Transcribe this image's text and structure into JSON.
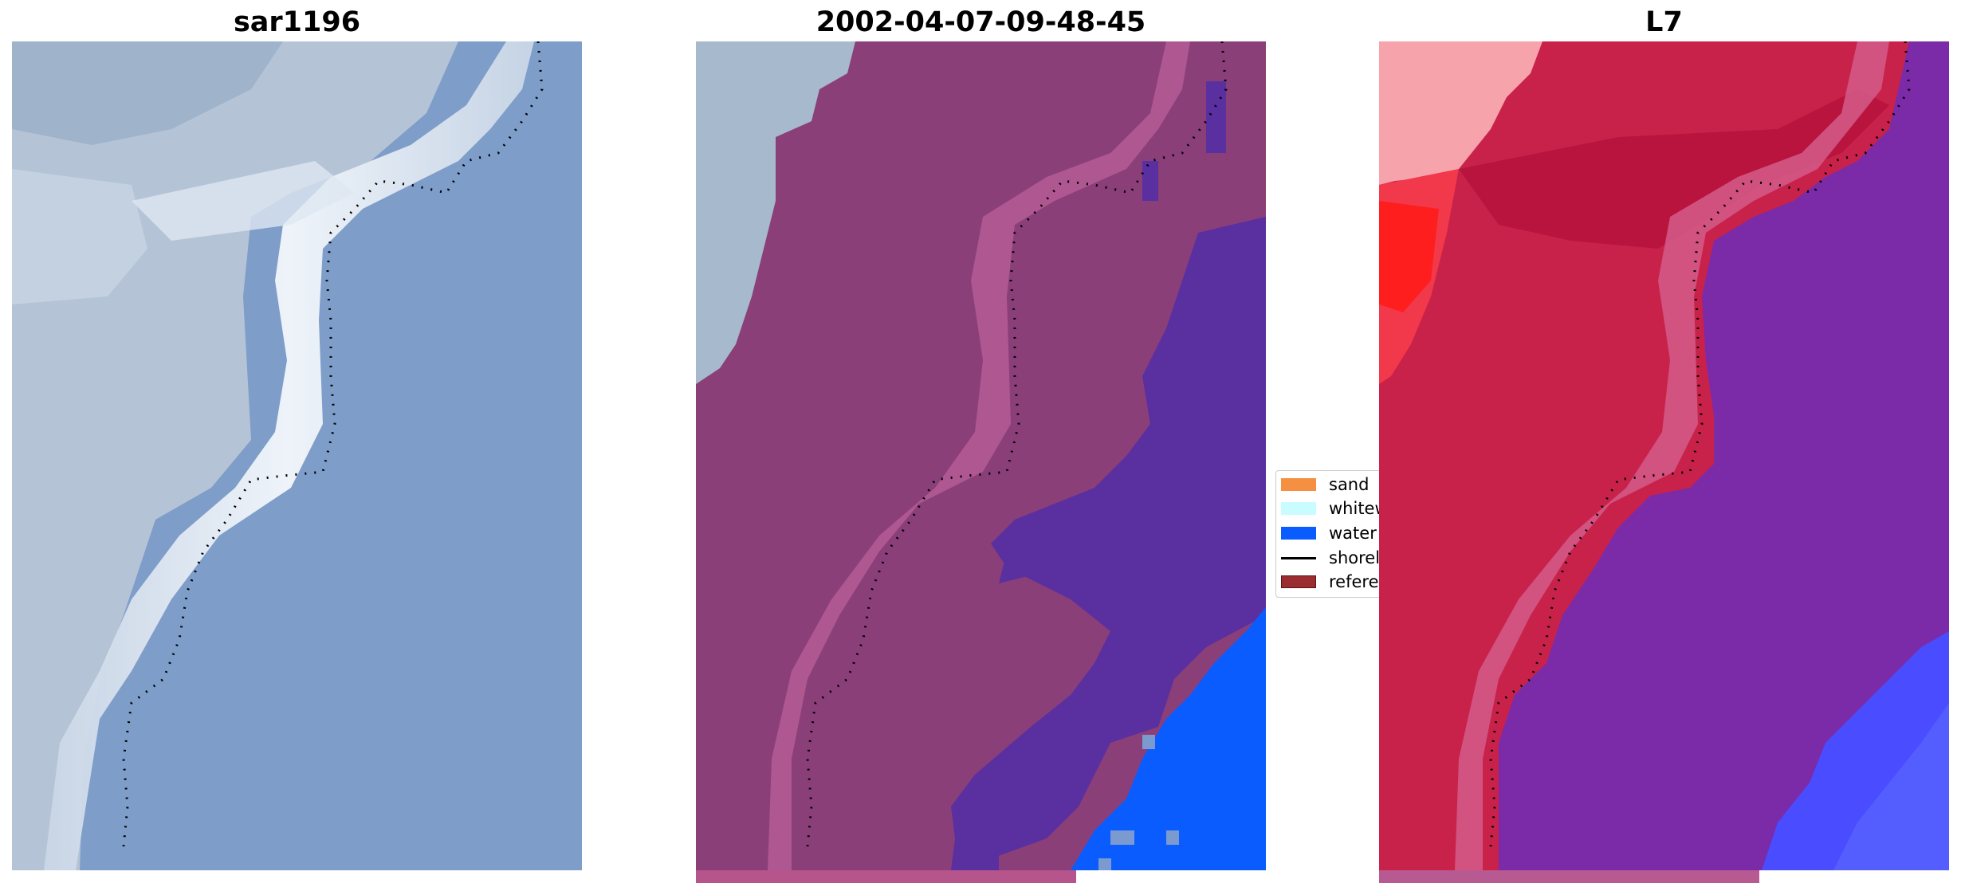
{
  "panels": [
    {
      "title": "sar1196"
    },
    {
      "title": "2002-04-07-09-48-45"
    },
    {
      "title": "L7"
    }
  ],
  "legend": {
    "items": [
      {
        "label": "sand",
        "color": "#f59042"
      },
      {
        "label": "whitewater",
        "color": "#c8fcff"
      },
      {
        "label": "water",
        "color": "#0a5cff"
      },
      {
        "label": "shoreline",
        "color": "#000000"
      },
      {
        "label": "reference",
        "color": "#9b2d30"
      }
    ]
  },
  "colors": {
    "sea": "#7d9bc8",
    "surf": "#e8eef6",
    "land": "#b7c6d8",
    "class_land": "#8b3f78",
    "class_water_dark": "#5a2fa0",
    "class_water": "#0a5cff",
    "l7_land": "#c8224a",
    "l7_water": "#7b2aa8",
    "l7_blue": "#4a4cff",
    "l7_red": "#ff2a2a"
  }
}
